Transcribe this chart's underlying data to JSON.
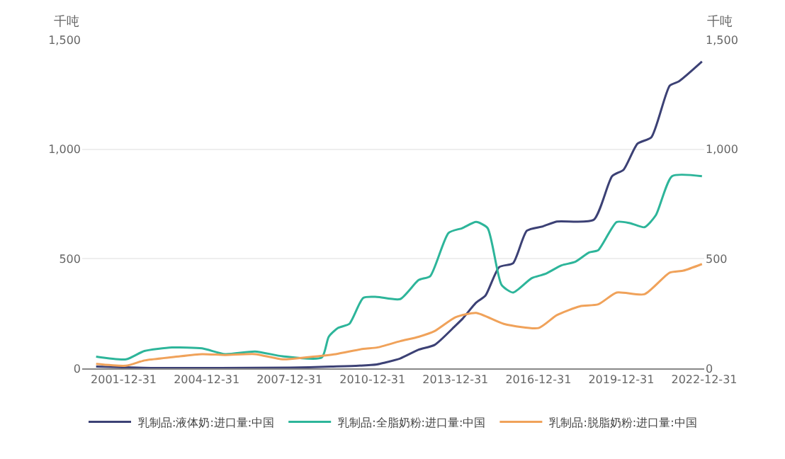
{
  "chart_data": {
    "type": "line",
    "ylabel": "千吨",
    "y2label": "千吨",
    "xlim": [
      "2000-07-01",
      "2022-12-31"
    ],
    "xticks": [
      "2001-12-31",
      "2004-12-31",
      "2007-12-31",
      "2010-12-31",
      "2013-12-31",
      "2016-12-31",
      "2019-12-31",
      "2022-12-31"
    ],
    "ylim": [
      0,
      1500
    ],
    "yticks": [
      0,
      500,
      {
        "value": 1000,
        "label": "1,000"
      },
      {
        "value": 1500,
        "label": "1,500"
      }
    ],
    "y2lim": [
      0,
      1500
    ],
    "y2ticks": [
      0,
      500,
      {
        "value": 1000,
        "label": "1,000"
      },
      {
        "value": 1500,
        "label": "1,500"
      }
    ],
    "grid": "y",
    "legend": "bottom",
    "marker": "none",
    "line_style": "solid",
    "series": [
      {
        "name": "乳制品:液体奶:进口量:中国",
        "color": "#3c4175",
        "x": [
          "2001-01",
          "2003-01",
          "2008-01",
          "2009-07",
          "2010-07",
          "2011-03",
          "2011-06",
          "2012-01",
          "2012-09",
          "2013-04",
          "2014-01",
          "2014-04",
          "2014-10",
          "2015-02",
          "2015-08",
          "2016-02",
          "2016-08",
          "2017-03",
          "2017-09",
          "2019-01",
          "2019-09",
          "2020-02",
          "2020-08",
          "2021-02",
          "2021-10",
          "2022-02",
          "2022-12"
        ],
        "values": [
          8,
          2,
          3,
          8,
          12,
          18,
          25,
          45,
          85,
          107,
          195,
          225,
          300,
          332,
          462,
          480,
          628,
          648,
          670,
          678,
          877,
          907,
          1025,
          1055,
          1290,
          1310,
          1400
        ]
      },
      {
        "name": "乳制品:全脂奶粉:进口量:中国",
        "color": "#2db59a",
        "x": [
          "2001-01",
          "2002-02",
          "2002-10",
          "2003-10",
          "2004-11",
          "2005-09",
          "2006-10",
          "2007-10",
          "2009-03",
          "2009-06",
          "2009-10",
          "2010-03",
          "2010-09",
          "2011-03",
          "2012-01",
          "2012-09",
          "2013-02",
          "2013-10",
          "2014-04",
          "2014-10",
          "2015-03",
          "2015-09",
          "2016-02",
          "2016-10",
          "2017-04",
          "2017-11",
          "2018-05",
          "2018-11",
          "2019-03",
          "2019-11",
          "2020-05",
          "2020-11",
          "2021-04",
          "2021-11",
          "2022-12"
        ],
        "values": [
          53,
          41,
          79,
          95,
          91,
          65,
          77,
          55,
          49,
          144,
          184,
          203,
          322,
          326,
          316,
          403,
          421,
          618,
          640,
          668,
          640,
          381,
          346,
          411,
          431,
          470,
          486,
          529,
          539,
          668,
          662,
          644,
          699,
          877,
          877
        ]
      },
      {
        "name": "乳制品:脱脂奶粉:进口量:中国",
        "color": "#f0a25a",
        "x": [
          "2001-01",
          "2002-02",
          "2002-10",
          "2003-10",
          "2004-11",
          "2005-09",
          "2006-10",
          "2007-10",
          "2008-09",
          "2009-09",
          "2010-09",
          "2011-03",
          "2012-01",
          "2012-09",
          "2013-04",
          "2014-01",
          "2014-10",
          "2015-10",
          "2017-01",
          "2017-09",
          "2018-07",
          "2019-03",
          "2019-11",
          "2020-11",
          "2021-10",
          "2022-04",
          "2022-12"
        ],
        "values": [
          20,
          12,
          36,
          51,
          65,
          61,
          65,
          41,
          51,
          65,
          89,
          95,
          124,
          144,
          170,
          233,
          253,
          203,
          184,
          243,
          283,
          292,
          346,
          338,
          437,
          446,
          476
        ]
      }
    ]
  }
}
